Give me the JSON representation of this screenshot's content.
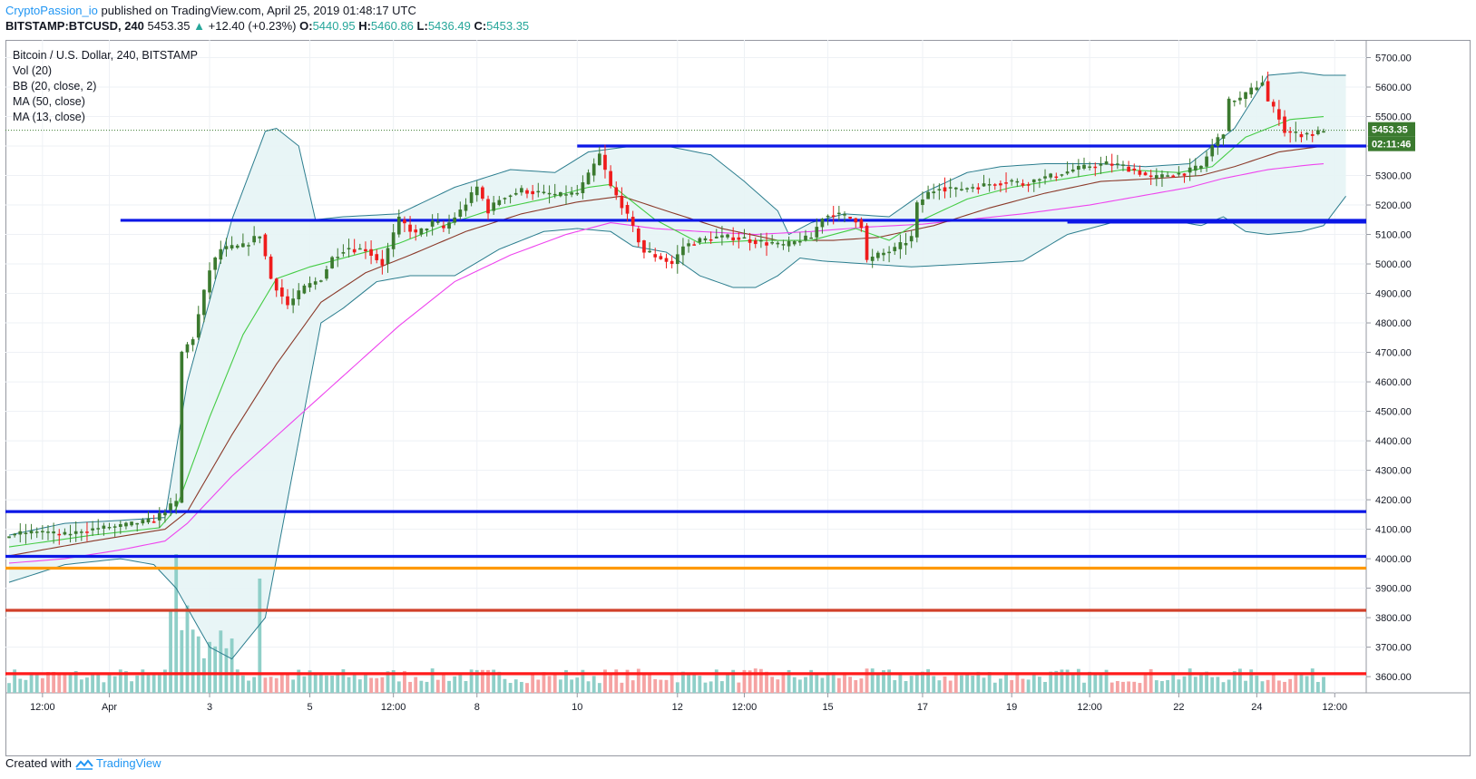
{
  "header": {
    "author": "CryptoPassion_io",
    "published": "published on TradingView.com, April 25, 2019 01:48:17 UTC",
    "symbol": "BITSTAMP:BTCUSD, 240",
    "last": "5453.35",
    "change": "+12.40 (+0.23%)",
    "o_label": "O:",
    "o_value": "5440.95",
    "h_label": "H:",
    "h_value": "5460.86",
    "l_label": "L:",
    "l_value": "5436.49",
    "c_label": "C:",
    "c_value": "5453.35"
  },
  "legend": {
    "title": "Bitcoin / U.S. Dollar, 240, BITSTAMP",
    "vol": "Vol (20)",
    "bb": "BB (20, close, 2)",
    "ma50": "MA (50, close)",
    "ma13": "MA (13, close)"
  },
  "footer": {
    "created": "Created with",
    "brand": "TradingView"
  },
  "colors": {
    "up": "#26a69a",
    "up_body": "#3b7a2f",
    "down": "#ef1c1c",
    "bb": "#2b7d8e",
    "bb_fill": "#e6f4f5",
    "ma13": "#44cc44",
    "ma_mid": "#8b3a2a",
    "ma50": "#ee44ee",
    "blue_line": "#0b17e6",
    "orange_line": "#ff9900",
    "brown_line": "#d0402a",
    "red_line": "#ff1a1a",
    "vol_up": "#8fcfc8",
    "vol_down": "#f5a3a3"
  },
  "chart_data": {
    "type": "candlestick",
    "y_axis": {
      "ticks": [
        3600,
        3700,
        3800,
        3900,
        4000,
        4100,
        4200,
        4300,
        4400,
        4500,
        4600,
        4700,
        4800,
        4900,
        5000,
        5100,
        5200,
        5300,
        5400,
        5500,
        5600,
        5700
      ],
      "tick_labels": [
        "3600.00",
        "3700.00",
        "3800.00",
        "3900.00",
        "4000.00",
        "4100.00",
        "4200.00",
        "4300.00",
        "4400.00",
        "4500.00",
        "4600.00",
        "4700.00",
        "4800.00",
        "4900.00",
        "5000.00",
        "5100.00",
        "5200.00",
        "5300.00",
        "5400.00",
        "5500.00",
        "5600.00",
        "5700.00"
      ],
      "range": [
        3545,
        5760
      ]
    },
    "x_axis": {
      "tick_labels": [
        "12:00",
        "Apr",
        "3",
        "5",
        "12:00",
        "8",
        "10",
        "12",
        "12:00",
        "15",
        "17",
        "19",
        "12:00",
        "22",
        "24",
        "12:00"
      ],
      "tick_bars": [
        6,
        18,
        36,
        54,
        69,
        84,
        102,
        120,
        132,
        147,
        164,
        180,
        194,
        210,
        224,
        238
      ]
    },
    "price_label": "5453.35",
    "countdown_label": "02:11:46",
    "horizontal_lines": [
      {
        "price": 5400,
        "x_from_bar": 102,
        "color": "blue"
      },
      {
        "price": 5148,
        "x_from_bar": 20,
        "color": "blue"
      },
      {
        "price": 5142,
        "x_from_bar": 190,
        "color": "blue"
      },
      {
        "price": 4160,
        "x_from_bar": 0,
        "color": "blue"
      },
      {
        "price": 4008,
        "x_from_bar": 0,
        "color": "blue"
      },
      {
        "price": 3968,
        "x_from_bar": 0,
        "color": "orange"
      },
      {
        "price": 3825,
        "x_from_bar": 0,
        "color": "brown"
      },
      {
        "price": 3610,
        "x_from_bar": 0,
        "color": "red"
      }
    ],
    "anchors": {
      "close": [
        [
          0,
          4080
        ],
        [
          5,
          4090
        ],
        [
          10,
          4080
        ],
        [
          15,
          4100
        ],
        [
          20,
          4110
        ],
        [
          26,
          4130
        ],
        [
          28,
          4165
        ],
        [
          30,
          4190
        ],
        [
          31,
          4700
        ],
        [
          33,
          4750
        ],
        [
          36,
          4980
        ],
        [
          38,
          5050
        ],
        [
          42,
          5060
        ],
        [
          45,
          5100
        ],
        [
          47,
          4950
        ],
        [
          50,
          4860
        ],
        [
          53,
          4920
        ],
        [
          56,
          4950
        ],
        [
          58,
          5020
        ],
        [
          60,
          5050
        ],
        [
          64,
          5050
        ],
        [
          67,
          5000
        ],
        [
          70,
          5150
        ],
        [
          73,
          5100
        ],
        [
          76,
          5140
        ],
        [
          78,
          5120
        ],
        [
          81,
          5180
        ],
        [
          84,
          5260
        ],
        [
          86,
          5180
        ],
        [
          88,
          5220
        ],
        [
          92,
          5250
        ],
        [
          95,
          5240
        ],
        [
          98,
          5230
        ],
        [
          102,
          5240
        ],
        [
          104,
          5300
        ],
        [
          106,
          5370
        ],
        [
          108,
          5260
        ],
        [
          110,
          5200
        ],
        [
          112,
          5120
        ],
        [
          114,
          5040
        ],
        [
          117,
          5020
        ],
        [
          119,
          5000
        ],
        [
          121,
          5060
        ],
        [
          124,
          5080
        ],
        [
          127,
          5090
        ],
        [
          130,
          5090
        ],
        [
          133,
          5080
        ],
        [
          136,
          5070
        ],
        [
          139,
          5060
        ],
        [
          142,
          5080
        ],
        [
          144,
          5090
        ],
        [
          146,
          5160
        ],
        [
          148,
          5170
        ],
        [
          150,
          5160
        ],
        [
          152,
          5150
        ],
        [
          153,
          5130
        ],
        [
          154,
          5010
        ],
        [
          156,
          5030
        ],
        [
          159,
          5050
        ],
        [
          162,
          5090
        ],
        [
          163,
          5200
        ],
        [
          165,
          5240
        ],
        [
          167,
          5260
        ],
        [
          170,
          5250
        ],
        [
          173,
          5260
        ],
        [
          176,
          5270
        ],
        [
          179,
          5280
        ],
        [
          182,
          5270
        ],
        [
          185,
          5290
        ],
        [
          188,
          5300
        ],
        [
          191,
          5320
        ],
        [
          194,
          5330
        ],
        [
          197,
          5340
        ],
        [
          200,
          5330
        ],
        [
          203,
          5310
        ],
        [
          205,
          5290
        ],
        [
          208,
          5300
        ],
        [
          211,
          5310
        ],
        [
          214,
          5330
        ],
        [
          216,
          5400
        ],
        [
          218,
          5450
        ],
        [
          219,
          5550
        ],
        [
          221,
          5560
        ],
        [
          223,
          5590
        ],
        [
          225,
          5620
        ],
        [
          226,
          5550
        ],
        [
          228,
          5500
        ],
        [
          229,
          5450
        ],
        [
          231,
          5440
        ],
        [
          234,
          5440
        ],
        [
          236,
          5453
        ]
      ],
      "ma50": [
        [
          0,
          3985
        ],
        [
          10,
          4000
        ],
        [
          20,
          4030
        ],
        [
          28,
          4060
        ],
        [
          32,
          4120
        ],
        [
          40,
          4280
        ],
        [
          50,
          4450
        ],
        [
          60,
          4620
        ],
        [
          70,
          4790
        ],
        [
          80,
          4940
        ],
        [
          90,
          5030
        ],
        [
          100,
          5100
        ],
        [
          108,
          5140
        ],
        [
          116,
          5120
        ],
        [
          124,
          5110
        ],
        [
          134,
          5100
        ],
        [
          144,
          5110
        ],
        [
          154,
          5125
        ],
        [
          164,
          5135
        ],
        [
          172,
          5150
        ],
        [
          182,
          5170
        ],
        [
          194,
          5200
        ],
        [
          206,
          5240
        ],
        [
          212,
          5260
        ],
        [
          218,
          5290
        ],
        [
          226,
          5320
        ],
        [
          233,
          5335
        ],
        [
          236,
          5340
        ]
      ],
      "ma13": [
        [
          0,
          4040
        ],
        [
          15,
          4080
        ],
        [
          27,
          4105
        ],
        [
          30,
          4170
        ],
        [
          36,
          4480
        ],
        [
          42,
          4760
        ],
        [
          48,
          4950
        ],
        [
          54,
          4990
        ],
        [
          62,
          5030
        ],
        [
          70,
          5070
        ],
        [
          78,
          5130
        ],
        [
          86,
          5180
        ],
        [
          96,
          5220
        ],
        [
          104,
          5260
        ],
        [
          108,
          5270
        ],
        [
          116,
          5150
        ],
        [
          124,
          5070
        ],
        [
          134,
          5080
        ],
        [
          144,
          5080
        ],
        [
          152,
          5120
        ],
        [
          158,
          5080
        ],
        [
          164,
          5150
        ],
        [
          172,
          5220
        ],
        [
          180,
          5260
        ],
        [
          190,
          5290
        ],
        [
          200,
          5320
        ],
        [
          210,
          5310
        ],
        [
          216,
          5330
        ],
        [
          222,
          5430
        ],
        [
          230,
          5490
        ],
        [
          236,
          5500
        ]
      ],
      "ma_mid": [
        [
          0,
          4010
        ],
        [
          15,
          4060
        ],
        [
          28,
          4100
        ],
        [
          32,
          4160
        ],
        [
          40,
          4420
        ],
        [
          48,
          4660
        ],
        [
          56,
          4870
        ],
        [
          64,
          4970
        ],
        [
          72,
          5030
        ],
        [
          82,
          5110
        ],
        [
          92,
          5170
        ],
        [
          102,
          5210
        ],
        [
          110,
          5230
        ],
        [
          118,
          5180
        ],
        [
          128,
          5120
        ],
        [
          138,
          5080
        ],
        [
          148,
          5080
        ],
        [
          156,
          5090
        ],
        [
          166,
          5130
        ],
        [
          176,
          5190
        ],
        [
          186,
          5240
        ],
        [
          196,
          5280
        ],
        [
          206,
          5290
        ],
        [
          214,
          5300
        ],
        [
          220,
          5330
        ],
        [
          228,
          5380
        ],
        [
          236,
          5400
        ]
      ],
      "bb_upper": [
        [
          0,
          4080
        ],
        [
          10,
          4120
        ],
        [
          20,
          4130
        ],
        [
          28,
          4140
        ],
        [
          32,
          4600
        ],
        [
          40,
          5150
        ],
        [
          46,
          5450
        ],
        [
          48,
          5460
        ],
        [
          52,
          5400
        ],
        [
          55,
          5150
        ],
        [
          60,
          5160
        ],
        [
          70,
          5170
        ],
        [
          80,
          5260
        ],
        [
          90,
          5320
        ],
        [
          98,
          5310
        ],
        [
          104,
          5380
        ],
        [
          112,
          5400
        ],
        [
          118,
          5400
        ],
        [
          126,
          5370
        ],
        [
          132,
          5280
        ],
        [
          138,
          5180
        ],
        [
          140,
          5100
        ],
        [
          144,
          5140
        ],
        [
          150,
          5170
        ],
        [
          158,
          5160
        ],
        [
          164,
          5240
        ],
        [
          172,
          5310
        ],
        [
          178,
          5330
        ],
        [
          186,
          5340
        ],
        [
          196,
          5340
        ],
        [
          204,
          5330
        ],
        [
          212,
          5340
        ],
        [
          220,
          5460
        ],
        [
          226,
          5640
        ],
        [
          232,
          5650
        ],
        [
          236,
          5640
        ]
      ],
      "bb_lower": [
        [
          0,
          3920
        ],
        [
          10,
          3980
        ],
        [
          20,
          4000
        ],
        [
          26,
          3980
        ],
        [
          30,
          3900
        ],
        [
          36,
          3700
        ],
        [
          40,
          3660
        ],
        [
          46,
          3800
        ],
        [
          50,
          4200
        ],
        [
          53,
          4500
        ],
        [
          56,
          4800
        ],
        [
          60,
          4850
        ],
        [
          66,
          4940
        ],
        [
          72,
          4960
        ],
        [
          80,
          4960
        ],
        [
          88,
          5050
        ],
        [
          96,
          5110
        ],
        [
          102,
          5120
        ],
        [
          108,
          5110
        ],
        [
          112,
          5060
        ],
        [
          118,
          5040
        ],
        [
          124,
          4960
        ],
        [
          130,
          4920
        ],
        [
          134,
          4920
        ],
        [
          138,
          4960
        ],
        [
          142,
          5020
        ],
        [
          146,
          5010
        ],
        [
          154,
          5000
        ],
        [
          162,
          4990
        ],
        [
          172,
          5000
        ],
        [
          182,
          5010
        ],
        [
          190,
          5100
        ],
        [
          200,
          5150
        ],
        [
          208,
          5150
        ],
        [
          214,
          5130
        ],
        [
          218,
          5160
        ],
        [
          222,
          5110
        ],
        [
          226,
          5100
        ],
        [
          232,
          5110
        ],
        [
          236,
          5130
        ],
        [
          240,
          5230
        ]
      ]
    }
  }
}
